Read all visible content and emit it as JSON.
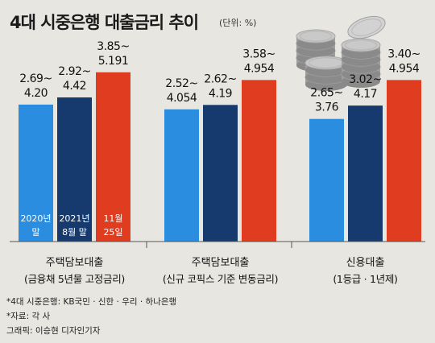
{
  "title": "4대 시중은행 대출금리 추이",
  "unit": "(단위: %)",
  "chart_data": {
    "type": "bar",
    "title": "4대 시중은행 대출금리 추이",
    "unit": "(단위: %)",
    "categories": [
      {
        "line1": "주택담보대출",
        "line2": "(금융채 5년물 고정금리)"
      },
      {
        "line1": "주택담보대출",
        "line2": "(신규 코픽스 기준 변동금리)"
      },
      {
        "line1": "신용대출",
        "line2": "(1등급 · 1년제)"
      }
    ],
    "series": [
      {
        "label_line1": "2020년",
        "label_line2": "말",
        "color": "#2b8de0",
        "values": [
          {
            "low": 2.69,
            "high": 4.2
          },
          {
            "low": 2.52,
            "high": 4.054
          },
          {
            "low": 2.65,
            "high": 3.76
          }
        ],
        "labels": [
          [
            "2.69~",
            "4.20"
          ],
          [
            "2.52~",
            "4.054"
          ],
          [
            "2.65~",
            "3.76"
          ]
        ]
      },
      {
        "label_line1": "2021년",
        "label_line2": "8월 말",
        "color": "#163a6e",
        "values": [
          {
            "low": 2.92,
            "high": 4.42
          },
          {
            "low": 2.62,
            "high": 4.19
          },
          {
            "low": 3.02,
            "high": 4.17
          }
        ],
        "labels": [
          [
            "2.92~",
            "4.42"
          ],
          [
            "2.62~",
            "4.19"
          ],
          [
            "3.02~",
            "4.17"
          ]
        ]
      },
      {
        "label_line1": "11월",
        "label_line2": "25일",
        "color": "#e03c1f",
        "values": [
          {
            "low": 3.85,
            "high": 5.191
          },
          {
            "low": 3.58,
            "high": 4.954
          },
          {
            "low": 3.4,
            "high": 4.954
          }
        ],
        "labels": [
          [
            "3.85~",
            "5.191"
          ],
          [
            "3.58~",
            "4.954"
          ],
          [
            "3.40~",
            "4.954"
          ]
        ]
      }
    ]
  },
  "footnotes": [
    "*4대 시중은행: KB국민 · 신한 · 우리 · 하나은행",
    "*자료: 각 사",
    "그래픽: 이승현 디자인기자"
  ],
  "colors": {
    "coin": "#c9c9c9",
    "axis": "#555555",
    "background": "#e8e6e1"
  }
}
